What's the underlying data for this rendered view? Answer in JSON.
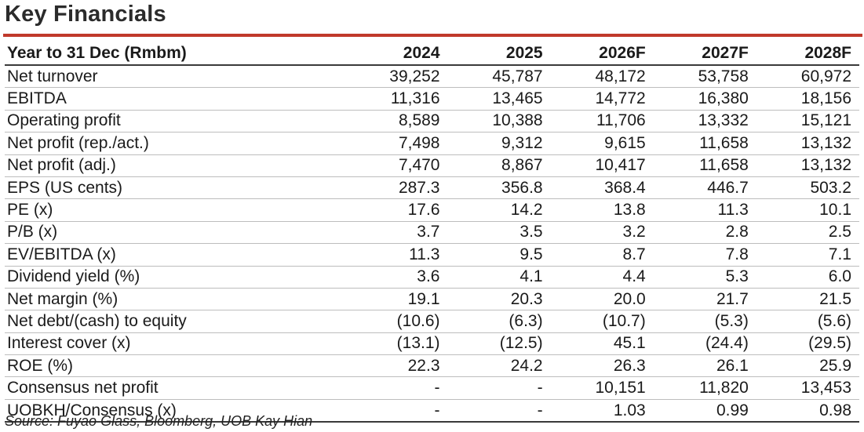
{
  "title": "Key Financials",
  "colors": {
    "accent_rule": "#c0392b"
  },
  "table": {
    "header": [
      "Year to 31 Dec (Rmbm)",
      "2024",
      "2025",
      "2026F",
      "2027F",
      "2028F"
    ],
    "rows": [
      [
        "Net turnover",
        "39,252",
        "45,787",
        "48,172",
        "53,758",
        "60,972"
      ],
      [
        "EBITDA",
        "11,316",
        "13,465",
        "14,772",
        "16,380",
        "18,156"
      ],
      [
        "Operating profit",
        "8,589",
        "10,388",
        "11,706",
        "13,332",
        "15,121"
      ],
      [
        "Net profit (rep./act.)",
        "7,498",
        "9,312",
        "9,615",
        "11,658",
        "13,132"
      ],
      [
        "Net profit (adj.)",
        "7,470",
        "8,867",
        "10,417",
        "11,658",
        "13,132"
      ],
      [
        "EPS (US cents)",
        "287.3",
        "356.8",
        "368.4",
        "446.7",
        "503.2"
      ],
      [
        "PE (x)",
        "17.6",
        "14.2",
        "13.8",
        "11.3",
        "10.1"
      ],
      [
        "P/B (x)",
        "3.7",
        "3.5",
        "3.2",
        "2.8",
        "2.5"
      ],
      [
        "EV/EBITDA (x)",
        "11.3",
        "9.5",
        "8.7",
        "7.8",
        "7.1"
      ],
      [
        "Dividend yield (%)",
        "3.6",
        "4.1",
        "4.4",
        "5.3",
        "6.0"
      ],
      [
        "Net margin (%)",
        "19.1",
        "20.3",
        "20.0",
        "21.7",
        "21.5"
      ],
      [
        "Net debt/(cash) to equity",
        "(10.6)",
        "(6.3)",
        "(10.7)",
        "(5.3)",
        "(5.6)"
      ],
      [
        "Interest cover (x)",
        "(13.1)",
        "(12.5)",
        "45.1",
        "(24.4)",
        "(29.5)"
      ],
      [
        "ROE (%)",
        "22.3",
        "24.2",
        "26.3",
        "26.1",
        "25.9"
      ],
      [
        "Consensus net profit",
        "-",
        "-",
        "10,151",
        "11,820",
        "13,453"
      ],
      [
        "UOBKH/Consensus (x)",
        "-",
        "-",
        "1.03",
        "0.99",
        "0.98"
      ]
    ]
  },
  "source": "Source: Fuyao Glass, Bloomberg, UOB Kay Hian"
}
